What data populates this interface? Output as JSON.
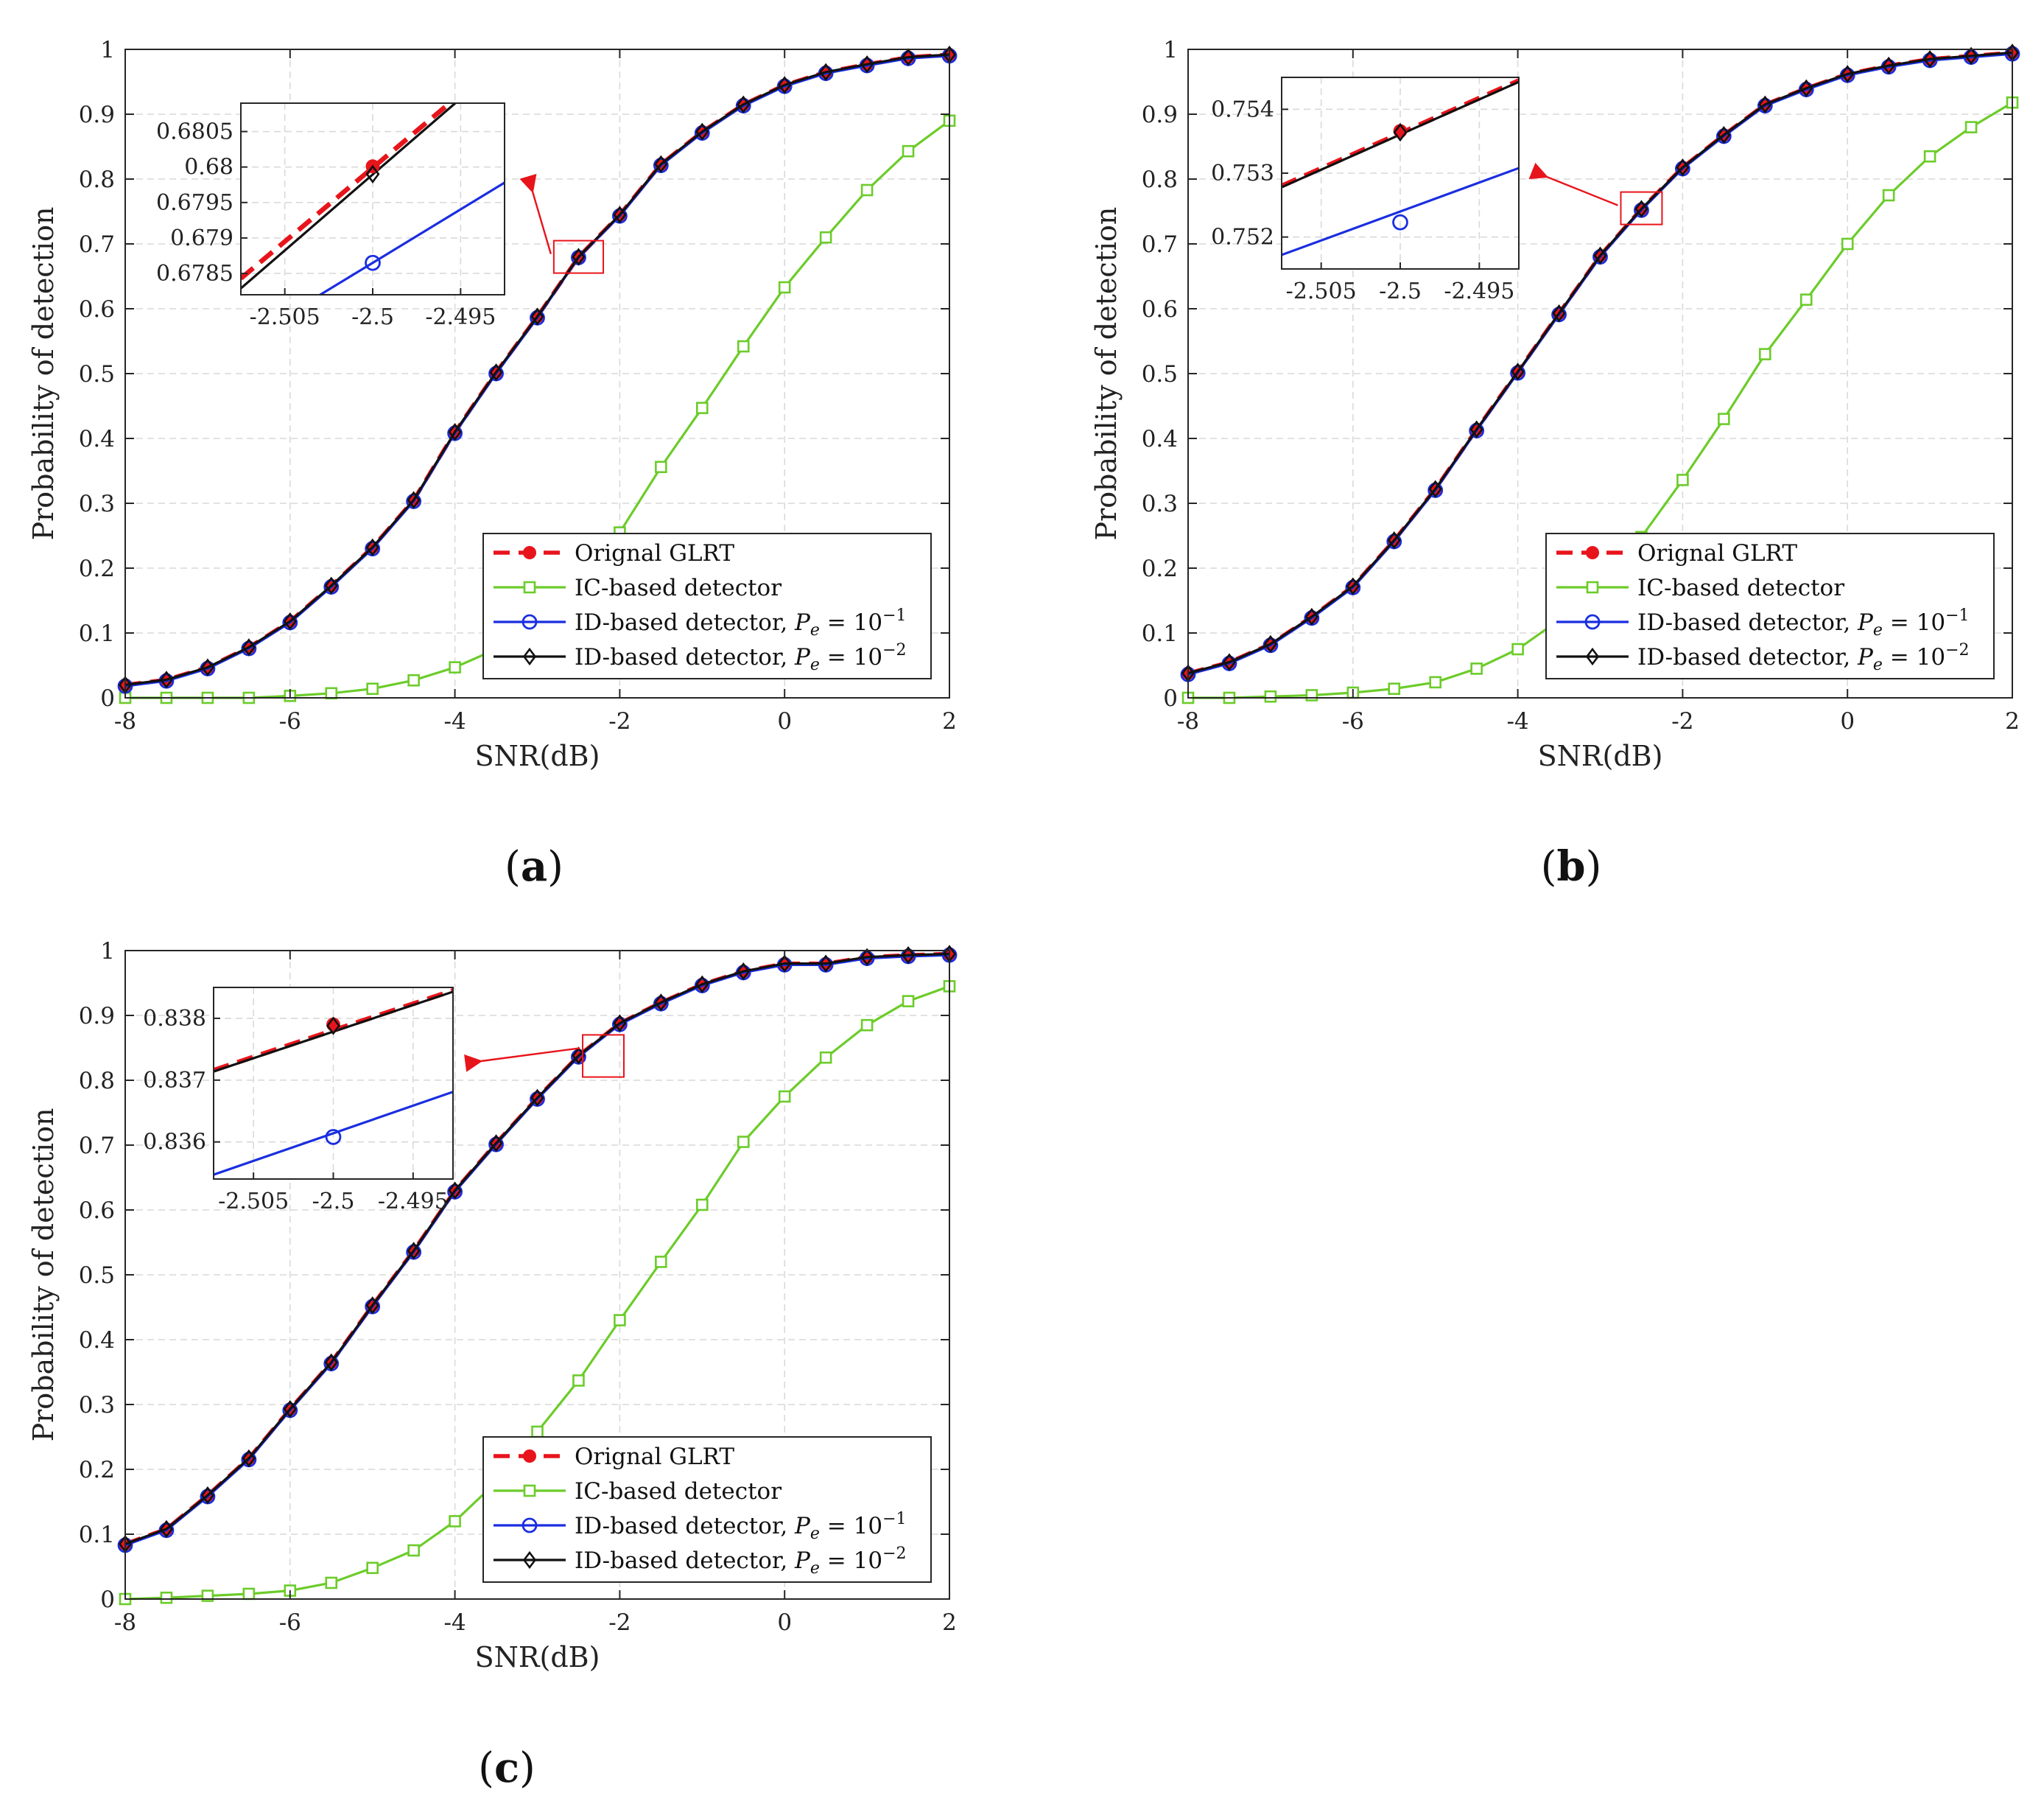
{
  "figure_labels": [
    {
      "open": "(",
      "letter": "a",
      "close": ")"
    },
    {
      "open": "(",
      "letter": "b",
      "close": ")"
    },
    {
      "open": "(",
      "letter": "c",
      "close": ")"
    }
  ],
  "colors": {
    "glrt": "#e8141b",
    "ic": "#6ccc2a",
    "id1": "#1a2ee0",
    "id2": "#111111",
    "grid": "#d9d9d9",
    "box": "#262626",
    "zoom_box": "#e8141b"
  },
  "legend": {
    "glrt": "Orignal GLRT",
    "ic": "IC-based detector",
    "id_prefix": "ID-based detector, ",
    "pe1": {
      "base": "P",
      "sub": "e",
      "eq": " = 10",
      "exp": "−1"
    },
    "pe2": {
      "base": "P",
      "sub": "e",
      "eq": " = 10",
      "exp": "−2"
    }
  },
  "chart_data": [
    {
      "id": "a",
      "type": "line",
      "xlabel": "SNR(dB)",
      "ylabel": "Probability of detection",
      "xlim": [
        -8,
        2
      ],
      "ylim": [
        0,
        1
      ],
      "xticks": [
        -8,
        -6,
        -4,
        -2,
        0,
        2
      ],
      "xtick_labels": [
        "-8",
        "-6",
        "-4",
        "-2",
        "0",
        "2"
      ],
      "yticks": [
        0,
        0.1,
        0.2,
        0.3,
        0.4,
        0.5,
        0.6,
        0.7,
        0.8,
        0.9,
        1
      ],
      "ytick_labels": [
        "0",
        "0.1",
        "0.2",
        "0.3",
        "0.4",
        "0.5",
        "0.6",
        "0.7",
        "0.8",
        "0.9",
        "1"
      ],
      "x": [
        -8,
        -7.5,
        -7,
        -6.5,
        -6,
        -5.5,
        -5,
        -4.5,
        -4,
        -3.5,
        -3,
        -2.5,
        -2,
        -1.5,
        -1,
        -0.5,
        0,
        0.5,
        1,
        1.5,
        2
      ],
      "series": [
        {
          "name": "Orignal GLRT",
          "key": "glrt",
          "values": [
            0.02,
            0.028,
            0.047,
            0.078,
            0.118,
            0.173,
            0.232,
            0.305,
            0.41,
            0.502,
            0.588,
            0.68,
            0.745,
            0.823,
            0.873,
            0.915,
            0.945,
            0.965,
            0.977,
            0.988,
            0.992
          ]
        },
        {
          "name": "IC-based detector",
          "key": "ic",
          "values": [
            0,
            0,
            0,
            0,
            0.003,
            0.007,
            0.014,
            0.027,
            0.047,
            0.075,
            0.12,
            0.18,
            0.255,
            0.356,
            0.447,
            0.542,
            0.633,
            0.71,
            0.783,
            0.843,
            0.89
          ]
        },
        {
          "name": "ID-based detector, Pe = 10^-1",
          "key": "id1",
          "values": [
            0.018,
            0.026,
            0.045,
            0.076,
            0.116,
            0.171,
            0.23,
            0.303,
            0.408,
            0.5,
            0.586,
            0.679,
            0.743,
            0.821,
            0.871,
            0.913,
            0.943,
            0.963,
            0.975,
            0.986,
            0.99
          ]
        },
        {
          "name": "ID-based detector, Pe = 10^-2",
          "key": "id2",
          "values": [
            0.02,
            0.028,
            0.047,
            0.078,
            0.118,
            0.173,
            0.232,
            0.305,
            0.41,
            0.502,
            0.588,
            0.68,
            0.745,
            0.823,
            0.873,
            0.915,
            0.945,
            0.965,
            0.977,
            0.988,
            0.992
          ]
        }
      ],
      "legend_position": "lower-right",
      "zoom_region": {
        "x": [
          -2.8,
          -2.2
        ],
        "y": [
          0.655,
          0.705
        ]
      },
      "inset": {
        "xlim": [
          -2.5075,
          -2.4925
        ],
        "ylim": [
          0.6782,
          0.6809
        ],
        "xticks": [
          -2.505,
          -2.5,
          -2.495
        ],
        "xtick_labels": [
          "-2.505",
          "-2.5",
          "-2.495"
        ],
        "yticks": [
          0.6785,
          0.679,
          0.6795,
          0.68,
          0.6805
        ],
        "ytick_labels": [
          "0.6785",
          "0.679",
          "0.6795",
          "0.68",
          "0.6805"
        ],
        "lines": [
          {
            "key": "glrt",
            "x": [
              -2.5075,
              -2.4925
            ],
            "y": [
              0.67843,
              0.68155
            ],
            "marker_at": [
              -2.5,
              0.68001
            ]
          },
          {
            "key": "id2",
            "x": [
              -2.5075,
              -2.4925
            ],
            "y": [
              0.67829,
              0.6815
            ],
            "marker_at": [
              -2.5,
              0.6799
            ]
          },
          {
            "key": "id1",
            "x": [
              -2.5075,
              -2.4925
            ],
            "y": [
              0.67752,
              0.67978
            ],
            "marker_at": [
              -2.5,
              0.67865
            ]
          }
        ]
      }
    },
    {
      "id": "b",
      "type": "line",
      "xlabel": "SNR(dB)",
      "ylabel": "Probability of detection",
      "xlim": [
        -8,
        2
      ],
      "ylim": [
        0,
        1
      ],
      "xticks": [
        -8,
        -6,
        -4,
        -2,
        0,
        2
      ],
      "xtick_labels": [
        "-8",
        "-6",
        "-4",
        "-2",
        "0",
        "2"
      ],
      "yticks": [
        0,
        0.1,
        0.2,
        0.3,
        0.4,
        0.5,
        0.6,
        0.7,
        0.8,
        0.9,
        1
      ],
      "ytick_labels": [
        "0",
        "0.1",
        "0.2",
        "0.3",
        "0.4",
        "0.5",
        "0.6",
        "0.7",
        "0.8",
        "0.9",
        "1"
      ],
      "x": [
        -8,
        -7.5,
        -7,
        -6.5,
        -6,
        -5.5,
        -5,
        -4.5,
        -4,
        -3.5,
        -3,
        -2.5,
        -2,
        -1.5,
        -1,
        -0.5,
        0,
        0.5,
        1,
        1.5,
        2
      ],
      "series": [
        {
          "name": "Orignal GLRT",
          "key": "glrt",
          "values": [
            0.038,
            0.055,
            0.083,
            0.125,
            0.172,
            0.243,
            0.322,
            0.414,
            0.503,
            0.593,
            0.682,
            0.754,
            0.818,
            0.868,
            0.915,
            0.94,
            0.962,
            0.975,
            0.985,
            0.99,
            0.995
          ]
        },
        {
          "name": "IC-based detector",
          "key": "ic",
          "values": [
            0,
            0,
            0.002,
            0.004,
            0.008,
            0.014,
            0.024,
            0.045,
            0.075,
            0.12,
            0.178,
            0.248,
            0.336,
            0.43,
            0.53,
            0.614,
            0.7,
            0.775,
            0.835,
            0.88,
            0.918
          ]
        },
        {
          "name": "ID-based detector, Pe = 10^-1",
          "key": "id1",
          "values": [
            0.036,
            0.053,
            0.081,
            0.123,
            0.17,
            0.241,
            0.32,
            0.412,
            0.501,
            0.591,
            0.68,
            0.752,
            0.816,
            0.866,
            0.913,
            0.938,
            0.96,
            0.973,
            0.983,
            0.988,
            0.993
          ]
        },
        {
          "name": "ID-based detector, Pe = 10^-2",
          "key": "id2",
          "values": [
            0.038,
            0.055,
            0.083,
            0.125,
            0.172,
            0.243,
            0.322,
            0.414,
            0.503,
            0.593,
            0.682,
            0.754,
            0.818,
            0.868,
            0.915,
            0.94,
            0.962,
            0.975,
            0.985,
            0.99,
            0.995
          ]
        }
      ],
      "legend_position": "lower-right",
      "zoom_region": {
        "x": [
          -2.75,
          -2.25
        ],
        "y": [
          0.73,
          0.78
        ]
      },
      "inset": {
        "xlim": [
          -2.5075,
          -2.4925
        ],
        "ylim": [
          0.7515,
          0.7545
        ],
        "xticks": [
          -2.505,
          -2.5,
          -2.495
        ],
        "xtick_labels": [
          "-2.505",
          "-2.5",
          "-2.495"
        ],
        "yticks": [
          0.752,
          0.753,
          0.754
        ],
        "ytick_labels": [
          "0.752",
          "0.753",
          "0.754"
        ],
        "lines": [
          {
            "key": "glrt",
            "x": [
              -2.5075,
              -2.4925
            ],
            "y": [
              0.7528,
              0.75445
            ],
            "marker_at": [
              -2.5,
              0.75366
            ]
          },
          {
            "key": "id2",
            "x": [
              -2.5075,
              -2.4925
            ],
            "y": [
              0.75278,
              0.75443
            ],
            "marker_at": [
              -2.5,
              0.75364
            ]
          },
          {
            "key": "id1",
            "x": [
              -2.5075,
              -2.4925
            ],
            "y": [
              0.75172,
              0.75308
            ],
            "marker_at": [
              -2.5,
              0.75223
            ]
          }
        ]
      }
    },
    {
      "id": "c",
      "type": "line",
      "xlabel": "SNR(dB)",
      "ylabel": "Probability of detection",
      "xlim": [
        -8,
        2
      ],
      "ylim": [
        0,
        1
      ],
      "xticks": [
        -8,
        -6,
        -4,
        -2,
        0,
        2
      ],
      "xtick_labels": [
        "-8",
        "-6",
        "-4",
        "-2",
        "0",
        "2"
      ],
      "yticks": [
        0,
        0.1,
        0.2,
        0.3,
        0.4,
        0.5,
        0.6,
        0.7,
        0.8,
        0.9,
        1
      ],
      "ytick_labels": [
        "0",
        "0.1",
        "0.2",
        "0.3",
        "0.4",
        "0.5",
        "0.6",
        "0.7",
        "0.8",
        "0.9",
        "1"
      ],
      "x": [
        -8,
        -7.5,
        -7,
        -6.5,
        -6,
        -5.5,
        -5,
        -4.5,
        -4,
        -3.5,
        -3,
        -2.5,
        -2,
        -1.5,
        -1,
        -0.5,
        0,
        0.5,
        1,
        1.5,
        2
      ],
      "series": [
        {
          "name": "Orignal GLRT",
          "key": "glrt",
          "values": [
            0.085,
            0.108,
            0.16,
            0.217,
            0.293,
            0.365,
            0.453,
            0.537,
            0.63,
            0.703,
            0.773,
            0.838,
            0.888,
            0.92,
            0.948,
            0.968,
            0.98,
            0.98,
            0.99,
            0.993,
            0.995
          ]
        },
        {
          "name": "IC-based detector",
          "key": "ic",
          "values": [
            0,
            0.002,
            0.005,
            0.008,
            0.013,
            0.025,
            0.048,
            0.075,
            0.12,
            0.18,
            0.258,
            0.337,
            0.43,
            0.52,
            0.608,
            0.705,
            0.775,
            0.835,
            0.885,
            0.922,
            0.945
          ]
        },
        {
          "name": "ID-based detector, Pe = 10^-1",
          "key": "id1",
          "values": [
            0.083,
            0.106,
            0.158,
            0.215,
            0.291,
            0.363,
            0.451,
            0.535,
            0.628,
            0.701,
            0.771,
            0.836,
            0.886,
            0.918,
            0.946,
            0.966,
            0.978,
            0.978,
            0.988,
            0.991,
            0.993
          ]
        },
        {
          "name": "ID-based detector, Pe = 10^-2",
          "key": "id2",
          "values": [
            0.085,
            0.108,
            0.16,
            0.217,
            0.293,
            0.365,
            0.453,
            0.537,
            0.63,
            0.703,
            0.773,
            0.838,
            0.888,
            0.92,
            0.948,
            0.968,
            0.98,
            0.98,
            0.99,
            0.993,
            0.995
          ]
        }
      ],
      "legend_position": "lower-right",
      "zoom_region": {
        "x": [
          -2.45,
          -1.95
        ],
        "y": [
          0.805,
          0.87
        ]
      },
      "inset": {
        "xlim": [
          -2.5075,
          -2.4925
        ],
        "ylim": [
          0.8354,
          0.8385
        ],
        "xticks": [
          -2.505,
          -2.5,
          -2.495
        ],
        "xtick_labels": [
          "-2.505",
          "-2.5",
          "-2.495"
        ],
        "yticks": [
          0.836,
          0.837,
          0.838
        ],
        "ytick_labels": [
          "0.836",
          "0.837",
          "0.838"
        ],
        "lines": [
          {
            "key": "glrt",
            "x": [
              -2.5075,
              -2.4925
            ],
            "y": [
              0.83716,
              0.83845
            ],
            "marker_at": [
              -2.5,
              0.8379
            ]
          },
          {
            "key": "id2",
            "x": [
              -2.5075,
              -2.4925
            ],
            "y": [
              0.83714,
              0.83843
            ],
            "marker_at": [
              -2.5,
              0.83788
            ]
          },
          {
            "key": "id1",
            "x": [
              -2.5075,
              -2.4925
            ],
            "y": [
              0.83547,
              0.83681
            ],
            "marker_at": [
              -2.5,
              0.83608
            ]
          }
        ]
      }
    }
  ]
}
